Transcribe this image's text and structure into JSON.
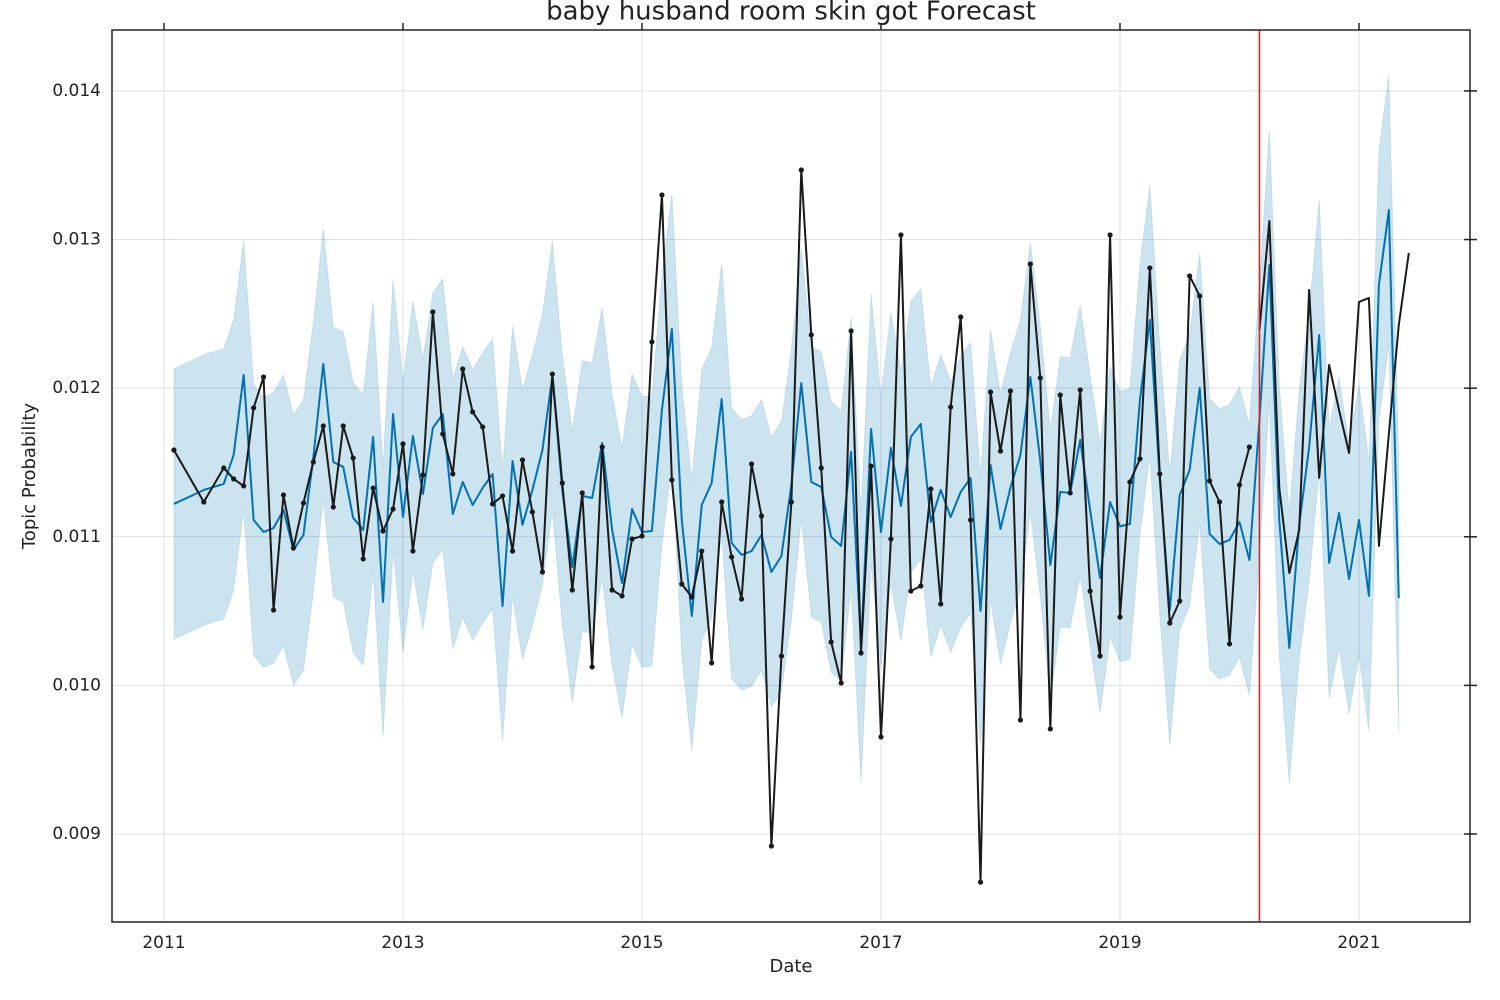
{
  "chart_data": {
    "type": "line",
    "title": "baby husband room skin got Forecast",
    "x_label": "Date",
    "y_label": "Topic Probability",
    "xlim": [
      2010.565,
      2021.929
    ],
    "ylim": [
      0.008408,
      0.01441
    ],
    "xticks": [
      2011,
      2013,
      2015,
      2017,
      2019,
      2021
    ],
    "yticks": [
      0.009,
      {
        "value": 0.01,
        "label": "0.010"
      },
      0.011,
      0.012,
      0.013,
      0.014
    ],
    "grid": true,
    "vline": {
      "x": 2020.167,
      "color": "#cc2b2b"
    },
    "series": [
      {
        "color": "#0072b2",
        "band_color": "#0072b2",
        "markers": false,
        "x": [
          2011.083,
          2011.333,
          2011.5,
          2011.583,
          2011.667,
          2011.75,
          2011.833,
          2011.917,
          2012,
          2012.083,
          2012.167,
          2012.25,
          2012.333,
          2012.417,
          2012.5,
          2012.583,
          2012.667,
          2012.75,
          2012.833,
          2012.917,
          2013,
          2013.083,
          2013.167,
          2013.25,
          2013.333,
          2013.417,
          2013.5,
          2013.583,
          2013.667,
          2013.75,
          2013.833,
          2013.917,
          2014,
          2014.083,
          2014.167,
          2014.25,
          2014.333,
          2014.417,
          2014.5,
          2014.583,
          2014.667,
          2014.75,
          2014.833,
          2014.917,
          2015,
          2015.083,
          2015.167,
          2015.25,
          2015.333,
          2015.417,
          2015.5,
          2015.583,
          2015.667,
          2015.75,
          2015.833,
          2015.917,
          2016,
          2016.083,
          2016.167,
          2016.25,
          2016.333,
          2016.417,
          2016.5,
          2016.583,
          2016.667,
          2016.75,
          2016.833,
          2016.917,
          2017,
          2017.083,
          2017.167,
          2017.25,
          2017.333,
          2017.417,
          2017.5,
          2017.583,
          2017.667,
          2017.75,
          2017.833,
          2017.917,
          2018,
          2018.083,
          2018.167,
          2018.25,
          2018.333,
          2018.417,
          2018.5,
          2018.583,
          2018.667,
          2018.75,
          2018.833,
          2018.917,
          2019,
          2019.083,
          2019.167,
          2019.25,
          2019.333,
          2019.417,
          2019.5,
          2019.583,
          2019.667,
          2019.75,
          2019.833,
          2019.917,
          2020,
          2020.083,
          2020.167,
          2020.25,
          2020.333,
          2020.417,
          2020.5,
          2020.583,
          2020.667,
          2020.75,
          2020.833,
          2020.917,
          2021,
          2021.083,
          2021.167,
          2021.25,
          2021.333
        ],
        "values": [
          0.011221,
          0.011315,
          0.011356,
          0.011551,
          0.012089,
          0.011113,
          0.011032,
          0.011059,
          0.01118,
          0.010911,
          0.011012,
          0.011537,
          0.012163,
          0.011503,
          0.01147,
          0.011127,
          0.011046,
          0.011672,
          0.010561,
          0.011826,
          0.011133,
          0.011678,
          0.011288,
          0.011732,
          0.011826,
          0.011153,
          0.011369,
          0.011214,
          0.011329,
          0.011423,
          0.010534,
          0.01151,
          0.01108,
          0.011315,
          0.011584,
          0.012082,
          0.011315,
          0.010797,
          0.011275,
          0.011261,
          0.011631,
          0.011046,
          0.010689,
          0.011187,
          0.011032,
          0.011039,
          0.011853,
          0.012398,
          0.011113,
          0.010467,
          0.011214,
          0.011362,
          0.011927,
          0.010958,
          0.010878,
          0.010904,
          0.011012,
          0.010763,
          0.010871,
          0.011349,
          0.012035,
          0.011369,
          0.011335,
          0.010999,
          0.010938,
          0.011571,
          0.010258,
          0.011725,
          0.011032,
          0.011598,
          0.011207,
          0.011672,
          0.011759,
          0.0111,
          0.011315,
          0.011133,
          0.011302,
          0.011396,
          0.010501,
          0.011483,
          0.011052,
          0.011329,
          0.011551,
          0.012076,
          0.01151,
          0.01081,
          0.011302,
          0.011295,
          0.011651,
          0.01118,
          0.010723,
          0.011234,
          0.01107,
          0.011086,
          0.011921,
          0.012459,
          0.011382,
          0.010507,
          0.011281,
          0.01145,
          0.012002,
          0.011019,
          0.010952,
          0.010979,
          0.0111,
          0.010844,
          0.011786,
          0.012829,
          0.011113,
          0.010252,
          0.01108,
          0.011604,
          0.012358,
          0.010824,
          0.01116,
          0.010716,
          0.011113,
          0.010602,
          0.012695,
          0.013199,
          0.010588
        ],
        "upper": [
          0.012131,
          0.012225,
          0.012266,
          0.012461,
          0.012999,
          0.012023,
          0.011942,
          0.011969,
          0.01209,
          0.011821,
          0.011922,
          0.012447,
          0.013073,
          0.012413,
          0.01238,
          0.012037,
          0.011956,
          0.012582,
          0.011471,
          0.012736,
          0.012043,
          0.012588,
          0.012198,
          0.012642,
          0.012736,
          0.012063,
          0.012279,
          0.012124,
          0.012239,
          0.012333,
          0.011444,
          0.01242,
          0.01199,
          0.012225,
          0.012494,
          0.012992,
          0.012225,
          0.011707,
          0.012185,
          0.012171,
          0.012541,
          0.011956,
          0.011599,
          0.012097,
          0.011942,
          0.011949,
          0.012763,
          0.013308,
          0.012023,
          0.011377,
          0.012124,
          0.012272,
          0.012837,
          0.011868,
          0.011788,
          0.011814,
          0.011922,
          0.011673,
          0.011781,
          0.012259,
          0.012945,
          0.012279,
          0.012245,
          0.011909,
          0.011848,
          0.012481,
          0.011168,
          0.012635,
          0.011942,
          0.012508,
          0.012117,
          0.012582,
          0.012669,
          0.01201,
          0.012225,
          0.012043,
          0.012212,
          0.012306,
          0.011411,
          0.012393,
          0.011962,
          0.012239,
          0.012461,
          0.012986,
          0.01242,
          0.01172,
          0.012212,
          0.012205,
          0.012561,
          0.01209,
          0.011633,
          0.012144,
          0.01198,
          0.011996,
          0.012831,
          0.013369,
          0.012292,
          0.011417,
          0.012191,
          0.01236,
          0.012912,
          0.011929,
          0.011862,
          0.011889,
          0.01201,
          0.011754,
          0.012696,
          0.013739,
          0.012023,
          0.011162,
          0.01199,
          0.012514,
          0.013268,
          0.011734,
          0.01207,
          0.011626,
          0.012023,
          0.011512,
          0.013605,
          0.014109,
          0.011498
        ],
        "lower": [
          0.010311,
          0.010405,
          0.010446,
          0.010641,
          0.011179,
          0.010203,
          0.010122,
          0.010149,
          0.01027,
          0.010001,
          0.010102,
          0.010627,
          0.011253,
          0.010593,
          0.01056,
          0.010217,
          0.010136,
          0.010762,
          0.009651,
          0.010916,
          0.010223,
          0.010768,
          0.010378,
          0.010822,
          0.010916,
          0.010243,
          0.010459,
          0.010304,
          0.010419,
          0.010513,
          0.009624,
          0.0106,
          0.01017,
          0.010405,
          0.010674,
          0.011172,
          0.010405,
          0.009887,
          0.010365,
          0.010351,
          0.010721,
          0.010136,
          0.009779,
          0.010277,
          0.010122,
          0.010129,
          0.010943,
          0.011488,
          0.010203,
          0.009557,
          0.010304,
          0.010452,
          0.011017,
          0.010048,
          0.009968,
          0.009994,
          0.010102,
          0.009853,
          0.009961,
          0.010439,
          0.011125,
          0.010459,
          0.010425,
          0.010089,
          0.010028,
          0.010661,
          0.009348,
          0.010815,
          0.010122,
          0.010688,
          0.010297,
          0.010762,
          0.010849,
          0.01019,
          0.010405,
          0.010223,
          0.010392,
          0.010486,
          0.009591,
          0.010573,
          0.010142,
          0.010419,
          0.010641,
          0.011166,
          0.0106,
          0.0099,
          0.010392,
          0.010385,
          0.010741,
          0.01027,
          0.009813,
          0.010324,
          0.01016,
          0.010176,
          0.011011,
          0.011549,
          0.010472,
          0.009597,
          0.010371,
          0.01054,
          0.011092,
          0.010109,
          0.010042,
          0.010069,
          0.01019,
          0.009934,
          0.010876,
          0.011919,
          0.010203,
          0.009342,
          0.01017,
          0.010694,
          0.011448,
          0.009914,
          0.01025,
          0.009806,
          0.010203,
          0.009692,
          0.011785,
          0.012289,
          0.009678
        ]
      },
      {
        "color": "#1a1a1a",
        "markers": true,
        "x": [
          2011.083,
          2011.333,
          2011.5,
          2011.583,
          2011.667,
          2011.75,
          2011.833,
          2011.917,
          2012,
          2012.083,
          2012.167,
          2012.25,
          2012.333,
          2012.417,
          2012.5,
          2012.583,
          2012.667,
          2012.75,
          2012.833,
          2012.917,
          2013,
          2013.083,
          2013.167,
          2013.25,
          2013.333,
          2013.417,
          2013.5,
          2013.583,
          2013.667,
          2013.75,
          2013.833,
          2013.917,
          2014,
          2014.083,
          2014.167,
          2014.25,
          2014.333,
          2014.417,
          2014.5,
          2014.583,
          2014.667,
          2014.75,
          2014.833,
          2014.917,
          2015,
          2015.083,
          2015.167,
          2015.25,
          2015.333,
          2015.417,
          2015.5,
          2015.583,
          2015.667,
          2015.75,
          2015.833,
          2015.917,
          2016,
          2016.083,
          2016.167,
          2016.25,
          2016.333,
          2016.417,
          2016.5,
          2016.583,
          2016.667,
          2016.75,
          2016.833,
          2016.917,
          2017,
          2017.083,
          2017.167,
          2017.25,
          2017.333,
          2017.417,
          2017.5,
          2017.583,
          2017.667,
          2017.75,
          2017.833,
          2017.917,
          2018,
          2018.083,
          2018.167,
          2018.25,
          2018.333,
          2018.417,
          2018.5,
          2018.583,
          2018.667,
          2018.75,
          2018.833,
          2018.917,
          2019,
          2019.083,
          2019.167,
          2019.25,
          2019.333,
          2019.417,
          2019.5,
          2019.583,
          2019.667,
          2019.75,
          2019.833,
          2019.917,
          2020,
          2020.083
        ],
        "values": [
          0.011584,
          0.011234,
          0.011463,
          0.011389,
          0.011342,
          0.011867,
          0.012075,
          0.010507,
          0.011281,
          0.010925,
          0.011227,
          0.011503,
          0.011746,
          0.0112,
          0.011746,
          0.01153,
          0.010851,
          0.011328,
          0.011039,
          0.011187,
          0.011625,
          0.010904,
          0.011416,
          0.012513,
          0.011692,
          0.011423,
          0.012129,
          0.01184,
          0.011739,
          0.011221,
          0.011275,
          0.010904,
          0.011517,
          0.011167,
          0.010763,
          0.012095,
          0.011362,
          0.010642,
          0.011295,
          0.010124,
          0.011604,
          0.010642,
          0.010602,
          0.010985,
          0.011005,
          0.012311,
          0.0133,
          0.011382,
          0.010682,
          0.010595,
          0.010904,
          0.010151,
          0.011234,
          0.010864,
          0.010581,
          0.01149,
          0.01114,
          0.008919,
          0.010198,
          0.011234,
          0.013468,
          0.012358,
          0.011463,
          0.010292,
          0.010016,
          0.012385,
          0.010218,
          0.011476,
          0.009653,
          0.010985,
          0.013031,
          0.010635,
          0.010669,
          0.011322,
          0.010548,
          0.011873,
          0.012479,
          0.011113,
          0.008676,
          0.011974,
          0.011577,
          0.011981,
          0.009767,
          0.012836,
          0.012069,
          0.009707,
          0.011954,
          0.011295,
          0.011988,
          0.010635,
          0.010198,
          0.013031,
          0.01046,
          0.011369,
          0.011524,
          0.012809,
          0.011423,
          0.01042,
          0.010568,
          0.012755,
          0.01262,
          0.011376,
          0.011234,
          0.010279,
          0.011349,
          0.011604
        ]
      },
      {
        "color": "#1a1a1a",
        "markers": false,
        "x": [
          2020.167,
          2020.25,
          2020.333,
          2020.417,
          2020.5,
          2020.583,
          2020.667,
          2020.75,
          2020.833,
          2020.917,
          2021,
          2021.083,
          2021.167,
          2021.25,
          2021.333,
          2021.417
        ],
        "values": [
          0.012392,
          0.013125,
          0.011328,
          0.010756,
          0.011046,
          0.012661,
          0.011396,
          0.012156,
          0.011853,
          0.011564,
          0.01258,
          0.012607,
          0.010938,
          0.011692,
          0.012425,
          0.01291
        ]
      }
    ]
  }
}
